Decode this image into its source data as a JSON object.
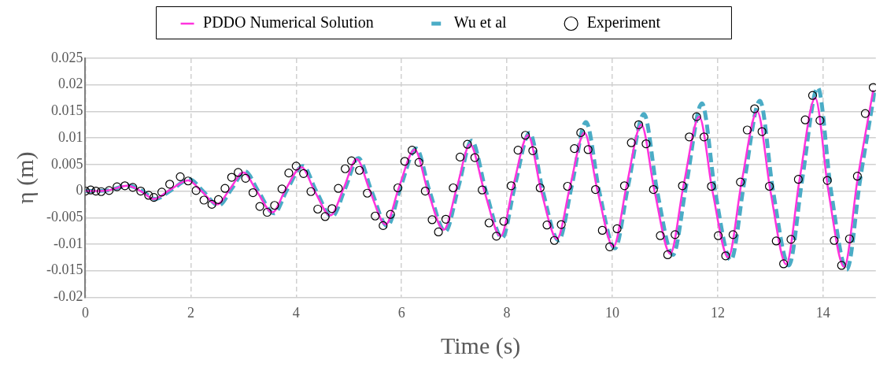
{
  "chart_data": {
    "type": "line",
    "xlabel": "Time (s)",
    "ylabel": "η (m)",
    "xlim": [
      0,
      15
    ],
    "xticks": [
      0,
      2,
      4,
      6,
      8,
      10,
      12,
      14
    ],
    "ylim": [
      -0.02,
      0.025
    ],
    "yticks": [
      -0.02,
      -0.015,
      -0.01,
      -0.005,
      0,
      0.005,
      0.01,
      0.015,
      0.02,
      0.025
    ],
    "grid": true,
    "legend": "top",
    "series": [
      {
        "name": "PDDO Numerical Solution",
        "color": "#ff33dd",
        "line_style": "solid",
        "marker": "none",
        "x": [
          0,
          0.4,
          0.8,
          1.05,
          1.3,
          1.6,
          1.95,
          2.2,
          2.5,
          2.75,
          3.0,
          3.25,
          3.55,
          3.8,
          4.1,
          4.35,
          4.65,
          4.9,
          5.15,
          5.4,
          5.7,
          5.95,
          6.25,
          6.5,
          6.8,
          7.05,
          7.3,
          7.57,
          7.88,
          8.12,
          8.4,
          8.65,
          8.95,
          9.2,
          9.47,
          9.72,
          10.02,
          10.27,
          10.55,
          10.8,
          11.1,
          11.35,
          11.65,
          11.9,
          12.2,
          12.45,
          12.75,
          13.0,
          13.3,
          13.55,
          13.85,
          14.1,
          14.4,
          14.65,
          14.95
        ],
        "values": [
          0,
          0.0001,
          0.001,
          0,
          -0.0015,
          0.0002,
          0.002,
          0,
          -0.0025,
          0.0005,
          0.0035,
          0,
          -0.004,
          0.0003,
          0.0045,
          0,
          -0.0046,
          0.0005,
          0.006,
          0,
          -0.0063,
          0.0007,
          0.0078,
          0,
          -0.0073,
          0.0007,
          0.0088,
          0,
          -0.0085,
          0.001,
          0.0105,
          0,
          -0.009,
          0.001,
          0.011,
          0,
          -0.0105,
          0.001,
          0.0125,
          0,
          -0.0118,
          0.001,
          0.014,
          0,
          -0.0125,
          0.0015,
          0.015,
          0,
          -0.0138,
          0.002,
          0.0175,
          0,
          -0.0143,
          0.002,
          0.019
        ]
      },
      {
        "name": "Wu et al",
        "color": "#4bacc6",
        "line_style": "dashed",
        "marker": "none",
        "x": [
          0,
          0.4,
          0.82,
          1.08,
          1.33,
          1.63,
          1.98,
          2.23,
          2.53,
          2.78,
          3.03,
          3.28,
          3.58,
          3.83,
          4.13,
          4.38,
          4.68,
          4.93,
          5.18,
          5.43,
          5.73,
          5.98,
          6.28,
          6.53,
          6.83,
          7.08,
          7.33,
          7.6,
          7.91,
          8.15,
          8.43,
          8.68,
          8.98,
          9.23,
          9.5,
          9.75,
          10.05,
          10.3,
          10.6,
          10.85,
          11.15,
          11.4,
          11.7,
          11.95,
          12.25,
          12.5,
          12.8,
          13.05,
          13.35,
          13.6,
          13.9,
          14.15,
          14.45,
          14.7,
          14.98
        ],
        "values": [
          0,
          0.0001,
          0.001,
          0,
          -0.0015,
          0.0002,
          0.0022,
          0,
          -0.0027,
          0.0005,
          0.0037,
          0,
          -0.0042,
          0.0003,
          0.0047,
          0,
          -0.0048,
          0.0005,
          0.0062,
          0,
          -0.0066,
          0.0007,
          0.008,
          0,
          -0.0076,
          0.0008,
          0.0095,
          0,
          -0.0088,
          0.001,
          0.011,
          0,
          -0.0093,
          0.001,
          0.013,
          0,
          -0.0108,
          0.001,
          0.0145,
          0,
          -0.012,
          0.001,
          0.0165,
          0,
          -0.013,
          0.0015,
          0.017,
          0,
          -0.014,
          0.002,
          0.0195,
          0,
          -0.0148,
          0.002,
          0.019
        ]
      },
      {
        "name": "Experiment",
        "type": "scatter",
        "color": "#000000",
        "marker": "circle",
        "x": [
          0,
          0.1,
          0.2,
          0.3,
          0.45,
          0.6,
          0.75,
          0.9,
          1.05,
          1.2,
          1.3,
          1.45,
          1.6,
          1.8,
          1.95,
          2.1,
          2.25,
          2.4,
          2.525,
          2.65,
          2.775,
          2.9,
          3.04,
          3.18,
          3.31,
          3.45,
          3.59,
          3.73,
          3.86,
          4.0,
          4.14,
          4.28,
          4.41,
          4.55,
          4.68,
          4.8,
          4.93,
          5.05,
          5.2,
          5.35,
          5.5,
          5.65,
          5.79,
          5.93,
          6.06,
          6.2,
          6.33,
          6.45,
          6.58,
          6.7,
          6.84,
          6.98,
          7.11,
          7.25,
          7.39,
          7.53,
          7.66,
          7.8,
          7.94,
          8.08,
          8.21,
          8.35,
          8.49,
          8.63,
          8.76,
          8.9,
          9.03,
          9.15,
          9.28,
          9.4,
          9.54,
          9.68,
          9.81,
          9.95,
          10.09,
          10.23,
          10.36,
          10.5,
          10.64,
          10.78,
          10.91,
          11.05,
          11.19,
          11.33,
          11.46,
          11.6,
          11.74,
          11.88,
          12.01,
          12.15,
          12.29,
          12.43,
          12.56,
          12.7,
          12.84,
          12.98,
          13.11,
          13.25,
          13.39,
          13.53,
          13.66,
          13.8,
          13.94,
          14.08,
          14.21,
          14.35,
          14.5,
          14.65,
          14.8,
          14.95
        ],
        "values": [
          0,
          0.0002,
          0,
          -0.0001,
          0.0001,
          0.0008,
          0.001,
          0.0007,
          0,
          -0.0008,
          -0.0012,
          -0.0002,
          0.0013,
          0.0027,
          0.0019,
          0.0001,
          -0.0017,
          -0.0025,
          -0.0016,
          0.0005,
          0.0026,
          0.0035,
          0.0024,
          -0.0003,
          -0.0029,
          -0.004,
          -0.0027,
          0.0004,
          0.0034,
          0.0047,
          0.0033,
          -0.0001,
          -0.0034,
          -0.0048,
          -0.0033,
          0.0005,
          0.0042,
          0.0057,
          0.0039,
          -0.0004,
          -0.0047,
          -0.0065,
          -0.0044,
          0.0006,
          0.0056,
          0.0077,
          0.0054,
          0,
          -0.0054,
          -0.0077,
          -0.0053,
          0.0006,
          0.0064,
          0.0088,
          0.0063,
          0.0002,
          -0.006,
          -0.0085,
          -0.0057,
          0.001,
          0.0077,
          0.0105,
          0.0076,
          0.0006,
          -0.0064,
          -0.0093,
          -0.0063,
          0.0009,
          0.008,
          0.011,
          0.0078,
          0.0003,
          -0.0074,
          -0.0105,
          -0.0071,
          0.001,
          0.0091,
          0.0125,
          0.0089,
          0.0003,
          -0.0084,
          -0.012,
          -0.0082,
          0.001,
          0.0102,
          0.014,
          0.0102,
          0.0009,
          -0.0084,
          -0.0122,
          -0.0082,
          0.0017,
          0.0115,
          0.0155,
          0.0112,
          0.0009,
          -0.0094,
          -0.0137,
          -0.0091,
          0.0022,
          0.0134,
          0.018,
          0.0133,
          0.002,
          -0.0093,
          -0.014,
          -0.009,
          0.0028,
          0.0146,
          0.0195
        ]
      }
    ]
  }
}
